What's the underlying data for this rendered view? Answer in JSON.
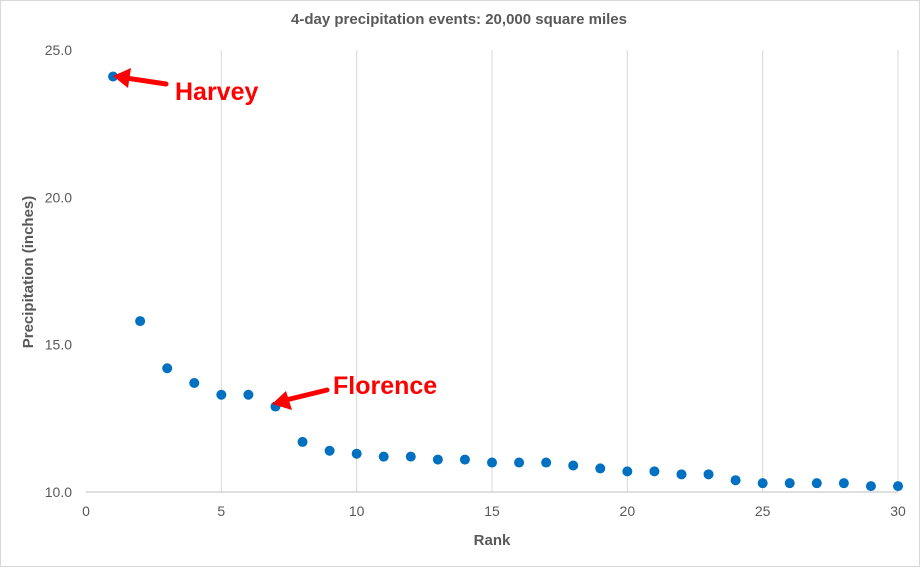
{
  "chart_data": {
    "type": "scatter",
    "title": "4-day precipitation events:  20,000 square miles",
    "xlabel": "Rank",
    "ylabel": "Precipitation (inches)",
    "xlim": [
      0,
      30
    ],
    "ylim": [
      10,
      25
    ],
    "x_ticks": [
      "0",
      "5",
      "10",
      "15",
      "20",
      "25",
      "30"
    ],
    "y_ticks": [
      "10.0",
      "15.0",
      "20.0",
      "25.0"
    ],
    "grid": "vertical",
    "marker_color": "#0070c0",
    "series": [
      {
        "x": [
          1,
          2,
          3,
          4,
          5,
          6,
          7,
          8,
          9,
          10,
          11,
          12,
          13,
          14,
          15,
          16,
          17,
          18,
          19,
          20,
          21,
          22,
          23,
          24,
          25,
          26,
          27,
          28,
          29,
          30
        ],
        "y": [
          24.1,
          15.8,
          14.2,
          13.7,
          13.3,
          13.3,
          12.9,
          11.7,
          11.4,
          11.3,
          11.2,
          11.2,
          11.1,
          11.1,
          11.0,
          11.0,
          11.0,
          10.9,
          10.8,
          10.7,
          10.7,
          10.6,
          10.6,
          10.4,
          10.3,
          10.3,
          10.3,
          10.3,
          10.2,
          10.2
        ]
      }
    ],
    "annotations": [
      {
        "text": "Harvey",
        "x": 1,
        "y": 24.1,
        "color": "#ff0000"
      },
      {
        "text": "Florence",
        "x": 7,
        "y": 12.9,
        "color": "#ff0000"
      }
    ]
  }
}
